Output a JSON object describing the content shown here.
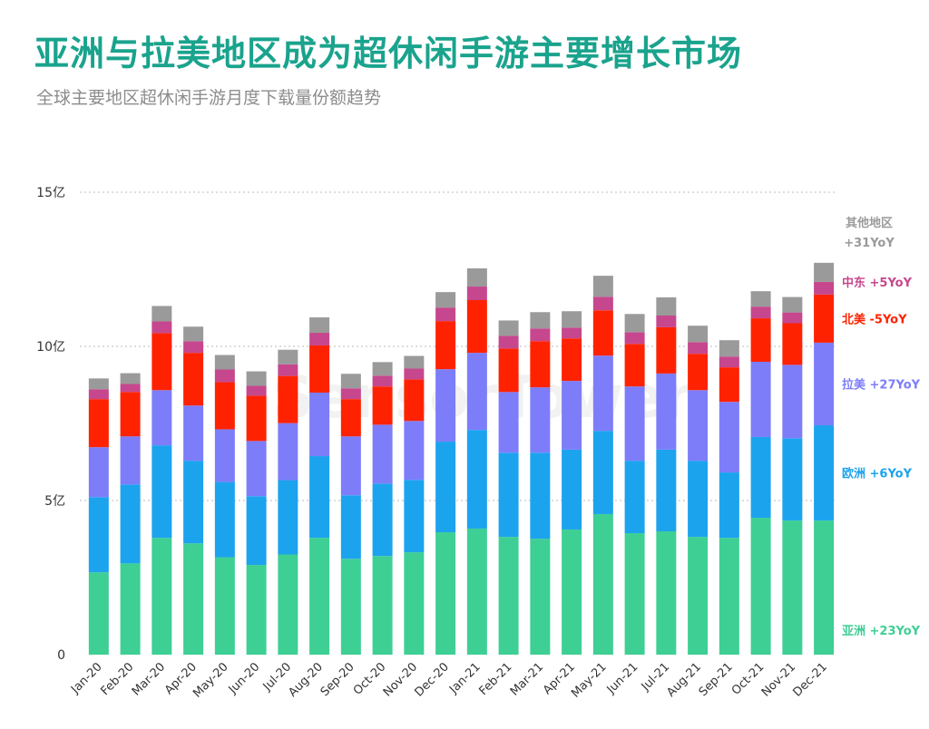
{
  "header": {
    "title": "亚洲与拉美地区成为超休闲手游主要增长市场",
    "subtitle": "全球主要地区超休闲手游月度下载量份额趋势"
  },
  "watermark": "SensorTower",
  "chart_data": {
    "type": "bar",
    "stacked": true,
    "title": "亚洲与拉美地区成为超休闲手游主要增长市场",
    "subtitle": "全球主要地区超休闲手游月度下载量份额趋势",
    "xlabel": "",
    "ylabel": "",
    "ylim": [
      0,
      15
    ],
    "yticks": [
      {
        "value": 0,
        "label": "0"
      },
      {
        "value": 5,
        "label": "5亿"
      },
      {
        "value": 10,
        "label": "10亿"
      },
      {
        "value": 15,
        "label": "15亿"
      }
    ],
    "grid": true,
    "categories": [
      "Jan-20",
      "Feb-20",
      "Mar-20",
      "Apr-20",
      "May-20",
      "Jun-20",
      "Jul-20",
      "Aug-20",
      "Sep-20",
      "Oct-20",
      "Nov-20",
      "Dec-20",
      "Jan-21",
      "Feb-21",
      "Mar-21",
      "Apr-21",
      "May-21",
      "Jun-21",
      "Jul-21",
      "Aug-21",
      "Sep-21",
      "Oct-21",
      "Nov-21",
      "Dec-21"
    ],
    "series": [
      {
        "name": "亚洲",
        "legend_label": "亚洲 +23YoY",
        "color": "#3ecf94",
        "values": [
          2.67,
          2.96,
          3.79,
          3.61,
          3.16,
          2.91,
          3.25,
          3.79,
          3.11,
          3.2,
          3.32,
          3.97,
          4.09,
          3.82,
          3.76,
          4.06,
          4.56,
          3.94,
          4.0,
          3.82,
          3.79,
          4.44,
          4.35,
          4.35
        ]
      },
      {
        "name": "欧洲",
        "legend_label": "欧洲 +6YoY",
        "color": "#1ca3ee",
        "values": [
          2.44,
          2.56,
          3.0,
          2.68,
          2.44,
          2.23,
          2.41,
          2.65,
          2.06,
          2.35,
          2.35,
          2.94,
          3.2,
          2.73,
          2.79,
          2.59,
          2.7,
          2.35,
          2.65,
          2.47,
          2.12,
          2.62,
          2.67,
          3.09
        ]
      },
      {
        "name": "拉美",
        "legend_label": "拉美 +27YoY",
        "color": "#7d7dfa",
        "values": [
          1.62,
          1.56,
          1.79,
          1.79,
          1.71,
          1.79,
          1.85,
          2.06,
          1.91,
          1.91,
          1.91,
          2.35,
          2.5,
          1.97,
          2.12,
          2.23,
          2.44,
          2.41,
          2.47,
          2.29,
          2.29,
          2.44,
          2.38,
          2.68
        ]
      },
      {
        "name": "北美",
        "legend_label": "北美 -5YoY",
        "color": "#ff2200",
        "values": [
          1.56,
          1.44,
          1.85,
          1.71,
          1.53,
          1.47,
          1.53,
          1.53,
          1.21,
          1.24,
          1.35,
          1.56,
          1.71,
          1.41,
          1.5,
          1.38,
          1.47,
          1.38,
          1.5,
          1.18,
          1.12,
          1.41,
          1.35,
          1.56
        ]
      },
      {
        "name": "中东",
        "legend_label": "中东 +5YoY",
        "color": "#c6478d",
        "values": [
          0.32,
          0.26,
          0.38,
          0.38,
          0.41,
          0.32,
          0.38,
          0.41,
          0.35,
          0.35,
          0.35,
          0.44,
          0.44,
          0.41,
          0.41,
          0.35,
          0.44,
          0.38,
          0.38,
          0.38,
          0.35,
          0.38,
          0.35,
          0.41
        ]
      },
      {
        "name": "其他地区",
        "legend_label": "其他地区 +31YoY",
        "color": "#9a9a9a",
        "values": [
          0.35,
          0.35,
          0.5,
          0.47,
          0.47,
          0.47,
          0.47,
          0.5,
          0.47,
          0.44,
          0.41,
          0.5,
          0.59,
          0.5,
          0.53,
          0.53,
          0.68,
          0.59,
          0.59,
          0.53,
          0.53,
          0.5,
          0.5,
          0.62
        ]
      }
    ]
  }
}
